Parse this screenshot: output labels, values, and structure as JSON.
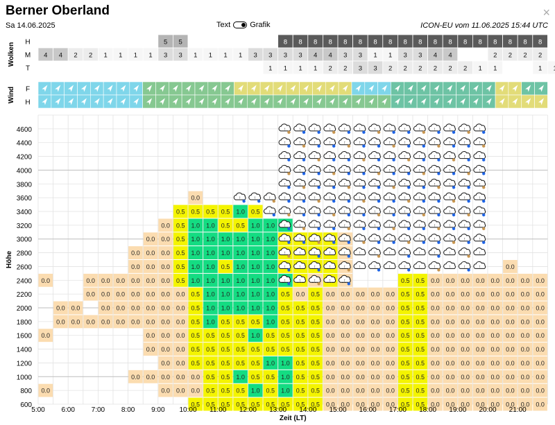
{
  "header": {
    "title": "Berner Oberland",
    "date": "Sa 14.06.2025",
    "toggle_left": "Text",
    "toggle_right": "Grafik",
    "model_info": "ICON-EU vom 11.06.2025 15:44 UTC",
    "close_label": "×"
  },
  "colors": {
    "thermal_0": "#fbdcb0",
    "thermal_05": "#f4f400",
    "thermal_10": "#14dc82",
    "cloud_8": "#5a5a5a",
    "cloud_5": "#b4b4b4",
    "cloud_4": "#c8c8c8",
    "cloud_3": "#dcdcdc",
    "cloud_2": "#ececec",
    "cloud_1": "#f6f6f6",
    "wind_cyan": "#7fd6ea",
    "wind_green": "#86c891",
    "wind_yellow": "#e2dc78",
    "wind_teal": "#6dc3a4",
    "icon_rain_blue": "#1e64e6",
    "icon_rain_brown": "#c89650"
  },
  "panels": {
    "wolken_label": "Wolken",
    "wind_label": "Wind",
    "cloud_rows": [
      "H",
      "M",
      "T"
    ],
    "wind_rows": [
      "F",
      "H"
    ]
  },
  "chart_data": {
    "type": "heatmap",
    "title": "",
    "xlabel": "Zeit (LT)",
    "ylabel": "Höhe",
    "x_start": "05:00",
    "x_end": "22:00",
    "x_step_minutes": 30,
    "ylim": [
      600,
      4800
    ],
    "y_step": 200,
    "x_ticks": [
      "5:00",
      "6:00",
      "7:00",
      "8:00",
      "9:00",
      "10:00",
      "11:00",
      "12:00",
      "13:00",
      "14:00",
      "15:00",
      "16:00",
      "17:00",
      "18:00",
      "19:00",
      "20:00",
      "21:00"
    ],
    "y_ticks": [
      600,
      800,
      1000,
      1200,
      1400,
      1600,
      1800,
      2000,
      2200,
      2400,
      2600,
      2800,
      3000,
      3200,
      3400,
      3600,
      3800,
      4000,
      4200,
      4400,
      4600
    ],
    "cloud_cover": {
      "H": [
        "",
        "",
        "",
        "",
        "",
        "",
        "",
        "",
        "5",
        "5",
        "",
        "",
        "",
        "",
        "",
        "",
        "8",
        "8",
        "8",
        "8",
        "8",
        "8",
        "8",
        "8",
        "8",
        "8",
        "8",
        "8",
        "8",
        "8",
        "8",
        "8",
        "8",
        "8"
      ],
      "M": [
        "4",
        "4",
        "2",
        "2",
        "1",
        "1",
        "1",
        "1",
        "3",
        "3",
        "1",
        "1",
        "1",
        "1",
        "3",
        "3",
        "3",
        "3",
        "4",
        "4",
        "3",
        "3",
        "1",
        "1",
        "3",
        "3",
        "4",
        "4",
        "",
        "",
        "2",
        "2",
        "2",
        "2"
      ],
      "T": [
        "",
        "",
        "",
        "",
        "",
        "",
        "",
        "",
        "",
        "",
        "",
        "",
        "",
        "",
        "",
        "1",
        "1",
        "1",
        "1",
        "2",
        "2",
        "3",
        "3",
        "2",
        "2",
        "2",
        "2",
        "2",
        "2",
        "1",
        "1",
        "",
        "",
        "1",
        "1"
      ]
    },
    "wind_bands": {
      "F": [
        "c",
        "c",
        "c",
        "c",
        "c",
        "c",
        "c",
        "c",
        "g",
        "g",
        "g",
        "g",
        "g",
        "g",
        "g",
        "y",
        "y",
        "y",
        "y",
        "y",
        "y",
        "y",
        "y",
        "y",
        "c",
        "c",
        "c",
        "t",
        "t",
        "t",
        "t",
        "t",
        "t",
        "t",
        "t",
        "y",
        "y",
        "t",
        "t"
      ],
      "H": [
        "c",
        "c",
        "c",
        "c",
        "c",
        "c",
        "c",
        "c",
        "g",
        "g",
        "g",
        "g",
        "g",
        "g",
        "g",
        "g",
        "g",
        "g",
        "g",
        "g",
        "g",
        "g",
        "g",
        "g",
        "g",
        "g",
        "g",
        "t",
        "t",
        "t",
        "t",
        "t",
        "t",
        "t",
        "t",
        "y",
        "y",
        "y",
        "y"
      ]
    },
    "thermal_rows": [
      {
        "alt": 4600,
        "cells": [
          "",
          "",
          "",
          "",
          "",
          "",
          "",
          "",
          "",
          "",
          "",
          "",
          "",
          "",
          "",
          "",
          "",
          "",
          "",
          "",
          "",
          "",
          "",
          "",
          "",
          "",
          "",
          "",
          "",
          "",
          "",
          "",
          ""
        ]
      },
      {
        "alt": 4400,
        "cells": [
          "",
          "",
          "",
          "",
          "",
          "",
          "",
          "",
          "",
          "",
          "",
          "",
          "",
          "",
          "",
          "",
          "",
          "",
          "",
          "",
          "",
          "",
          "",
          "",
          "",
          "",
          "",
          "",
          "",
          "",
          "",
          "",
          ""
        ]
      },
      {
        "alt": 4200,
        "cells": [
          "",
          "",
          "",
          "",
          "",
          "",
          "",
          "",
          "",
          "",
          "",
          "",
          "",
          "",
          "",
          "",
          "",
          "",
          "",
          "",
          "",
          "",
          "",
          "",
          "",
          "",
          "",
          "",
          "",
          "",
          "",
          "",
          ""
        ]
      },
      {
        "alt": 4000,
        "cells": [
          "",
          "",
          "",
          "",
          "",
          "",
          "",
          "",
          "",
          "",
          "",
          "",
          "",
          "",
          "",
          "",
          "",
          "",
          "",
          "",
          "",
          "",
          "",
          "",
          "",
          "",
          "",
          "",
          "",
          "",
          "",
          "",
          ""
        ]
      },
      {
        "alt": 3800,
        "cells": [
          "",
          "",
          "",
          "",
          "",
          "",
          "",
          "",
          "",
          "",
          "",
          "",
          "",
          "",
          "",
          "",
          "",
          "",
          "",
          "",
          "",
          "",
          "",
          "",
          "",
          "",
          "",
          "",
          "",
          "",
          "",
          "",
          ""
        ]
      },
      {
        "alt": 3600,
        "cells": [
          "",
          "",
          "",
          "",
          "",
          "",
          "",
          "",
          "",
          "",
          "0.0",
          "",
          "",
          "",
          "",
          "",
          "",
          "",
          "",
          "",
          "",
          "",
          "",
          "",
          "",
          "",
          "",
          "",
          "",
          "",
          "",
          "",
          ""
        ]
      },
      {
        "alt": 3400,
        "cells": [
          "",
          "",
          "",
          "",
          "",
          "",
          "",
          "",
          "",
          "0.5",
          "0.5",
          "0.5",
          "0.5",
          "1.0",
          "0.5",
          "",
          "",
          "",
          "",
          "",
          "",
          "",
          "",
          "",
          "",
          "",
          "",
          "",
          "",
          "",
          "",
          "",
          ""
        ]
      },
      {
        "alt": 3200,
        "cells": [
          "",
          "",
          "",
          "",
          "",
          "",
          "",
          "",
          "0.0",
          "0.5",
          "1.0",
          "1.0",
          "0.5",
          "0.5",
          "1.0",
          "1.0",
          "1.0",
          "",
          "",
          "",
          "",
          "",
          "",
          "",
          "",
          "",
          "",
          "",
          "",
          "",
          "",
          "",
          ""
        ]
      },
      {
        "alt": 3000,
        "cells": [
          "",
          "",
          "",
          "",
          "",
          "",
          "",
          "0.0",
          "0.0",
          "0.5",
          "1.0",
          "1.0",
          "1.0",
          "1.0",
          "1.0",
          "1.0",
          "0.5",
          "0.5",
          "0.5",
          "0.5",
          "0.0",
          "",
          "",
          "",
          "",
          "",
          "",
          "",
          "",
          "",
          "",
          "",
          ""
        ]
      },
      {
        "alt": 2800,
        "cells": [
          "",
          "",
          "",
          "",
          "",
          "",
          "0.0",
          "0.0",
          "0.0",
          "0.5",
          "1.0",
          "1.0",
          "1.0",
          "1.0",
          "1.0",
          "1.0",
          "0.5",
          "0.5",
          "0.5",
          "0.5",
          "0.0",
          "",
          "",
          "",
          "",
          "",
          "",
          "",
          "",
          "",
          "",
          "",
          ""
        ]
      },
      {
        "alt": 2600,
        "cells": [
          "",
          "",
          "",
          "",
          "",
          "",
          "0.0",
          "0.0",
          "0.0",
          "0.5",
          "1.0",
          "1.0",
          "0.5",
          "1.0",
          "1.0",
          "1.0",
          "0.5",
          "0.5",
          "0.5",
          "0.5",
          "0.0",
          "",
          "",
          "",
          "",
          "",
          "",
          "",
          "",
          "",
          "",
          "0.0",
          ""
        ]
      },
      {
        "alt": 2400,
        "cells": [
          "0.0",
          "",
          "",
          "0.0",
          "0.0",
          "0.0",
          "0.0",
          "0.0",
          "0.0",
          "0.5",
          "1.0",
          "1.0",
          "1.0",
          "1.0",
          "1.0",
          "1.0",
          "1.0",
          "0.5",
          "0.0",
          "0.5",
          "0.0",
          "",
          "",
          "",
          "0.5",
          "0.5",
          "0.0",
          "0.0",
          "0.0",
          "0.0",
          "0.0",
          "0.0",
          "0.0",
          "0.0",
          "0.0",
          "0.0"
        ]
      },
      {
        "alt": 2200,
        "cells": [
          "",
          "",
          "",
          "0.0",
          "0.0",
          "0.0",
          "0.0",
          "0.0",
          "0.0",
          "0.0",
          "0.5",
          "1.0",
          "1.0",
          "1.0",
          "1.0",
          "1.0",
          "0.5",
          "0.0",
          "0.5",
          "0.0",
          "0.0",
          "0.0",
          "0.0",
          "0.0",
          "0.5",
          "0.5",
          "0.0",
          "0.0",
          "0.0",
          "0.0",
          "0.0",
          "0.0",
          "0.0",
          "0.0",
          "",
          "0.0",
          "0.0"
        ]
      },
      {
        "alt": 2000,
        "cells": [
          "",
          "0.0",
          "0.0",
          "",
          "0.0",
          "0.0",
          "0.0",
          "0.0",
          "0.0",
          "0.0",
          "0.5",
          "1.0",
          "1.0",
          "1.0",
          "1.0",
          "1.0",
          "0.5",
          "0.5",
          "0.5",
          "0.0",
          "0.0",
          "0.0",
          "0.0",
          "0.0",
          "0.5",
          "0.5",
          "0.0",
          "0.0",
          "0.0",
          "0.0",
          "0.0",
          "0.0",
          "0.0",
          "0.0",
          "",
          "",
          "0.0"
        ]
      },
      {
        "alt": 1800,
        "cells": [
          "",
          "0.0",
          "0.0",
          "0.0",
          "0.0",
          "0.0",
          "0.0",
          "0.0",
          "0.0",
          "0.0",
          "0.5",
          "1.0",
          "0.5",
          "0.5",
          "0.5",
          "1.0",
          "0.5",
          "0.5",
          "0.5",
          "0.0",
          "0.0",
          "0.0",
          "0.0",
          "0.0",
          "0.5",
          "0.5",
          "0.0",
          "0.0",
          "0.0",
          "0.0",
          "0.0",
          "0.0",
          "0.0",
          "0.0"
        ]
      },
      {
        "alt": 1600,
        "cells": [
          "0.0",
          "",
          "",
          "",
          "",
          "",
          "",
          "0.0",
          "0.0",
          "0.0",
          "0.5",
          "0.5",
          "0.5",
          "0.5",
          "1.0",
          "0.5",
          "0.5",
          "0.5",
          "0.5",
          "0.0",
          "0.0",
          "0.0",
          "0.0",
          "0.0",
          "0.5",
          "0.5",
          "0.0",
          "0.0",
          "0.0",
          "0.0",
          "0.0",
          "0.0",
          "0.0",
          "0.0"
        ]
      },
      {
        "alt": 1400,
        "cells": [
          "",
          "",
          "",
          "",
          "",
          "",
          "",
          "0.0",
          "0.0",
          "0.0",
          "0.5",
          "0.5",
          "0.5",
          "0.5",
          "0.5",
          "0.5",
          "0.5",
          "0.5",
          "0.5",
          "0.0",
          "0.0",
          "0.0",
          "0.0",
          "0.0",
          "0.5",
          "0.5",
          "0.0",
          "0.0",
          "0.0",
          "0.0",
          "0.0",
          "0.0",
          "0.0",
          "0.0",
          "",
          "",
          "0.0",
          "0.0"
        ]
      },
      {
        "alt": 1200,
        "cells": [
          "",
          "",
          "",
          "",
          "",
          "",
          "",
          "",
          "0.0",
          "0.0",
          "0.5",
          "0.5",
          "0.5",
          "0.5",
          "0.5",
          "1.0",
          "1.0",
          "0.5",
          "0.5",
          "0.0",
          "0.0",
          "0.0",
          "0.0",
          "0.0",
          "0.5",
          "0.5",
          "0.0",
          "0.0",
          "0.0",
          "0.0",
          "0.0",
          "0.0",
          "0.0",
          "0.0",
          "0.0",
          "0.0",
          "0.0",
          "0.0"
        ]
      },
      {
        "alt": 1000,
        "cells": [
          "",
          "",
          "",
          "",
          "",
          "",
          "0.0",
          "0.0",
          "0.0",
          "0.0",
          "0.0",
          "0.5",
          "0.5",
          "1.0",
          "0.5",
          "0.5",
          "1.0",
          "0.5",
          "0.5",
          "0.0",
          "0.0",
          "0.0",
          "0.0",
          "0.0",
          "0.5",
          "0.5",
          "0.0",
          "0.0",
          "0.0",
          "0.0",
          "0.0",
          "0.0",
          "0.0",
          "0.0",
          "0.0",
          "0.0",
          "0.0",
          "0.0"
        ]
      },
      {
        "alt": 800,
        "cells": [
          "0.0",
          "",
          "",
          "",
          "",
          "",
          "",
          "",
          "0.0",
          "0.0",
          "0.0",
          "0.5",
          "0.5",
          "0.5",
          "1.0",
          "0.5",
          "1.0",
          "0.5",
          "0.5",
          "0.0",
          "0.0",
          "0.0",
          "0.0",
          "0.0",
          "0.5",
          "0.5",
          "0.0",
          "0.0",
          "0.0",
          "0.0",
          "0.0",
          "0.0",
          "0.0",
          "0.0"
        ]
      },
      {
        "alt": 600,
        "cells": [
          "",
          "",
          "",
          "",
          "",
          "",
          "",
          "",
          "",
          "",
          "0.5",
          "0.5",
          "0.5",
          "0.5",
          "0.5",
          "0.5",
          "0.5",
          "0.5",
          "0.5",
          "0.0",
          "0.0",
          "0.0",
          "0.0",
          "0.0",
          "0.5",
          "0.5",
          "0.0",
          "0.0",
          "0.0",
          "0.0",
          "0.0",
          "0.0",
          "0.0",
          "0.0"
        ]
      }
    ]
  }
}
